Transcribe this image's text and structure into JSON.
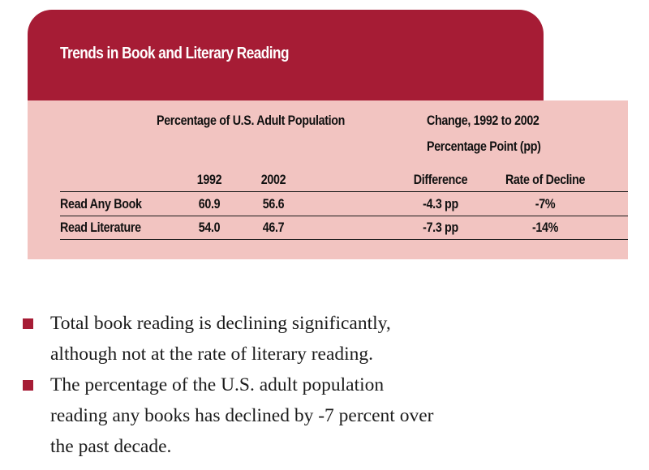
{
  "chart_data": {
    "type": "table",
    "title": "Trends in Book and Literary Reading",
    "group_headers": {
      "percentage": "Percentage of U.S. Adult Population",
      "change_line1": "Change, 1992 to 2002",
      "change_line2": "Percentage Point  (pp)"
    },
    "columns": [
      "1992",
      "2002",
      "Difference",
      "Rate of Decline"
    ],
    "rows": [
      {
        "label": "Read Any Book",
        "values": [
          "60.9",
          "56.6",
          "-4.3 pp",
          "-7%"
        ]
      },
      {
        "label": "Read Literature",
        "values": [
          "54.0",
          "46.7",
          "-7.3 pp",
          "-14%"
        ]
      }
    ]
  },
  "colors": {
    "accent": "#a61c35",
    "table_background": "#f2c4c1"
  },
  "bullets": [
    {
      "lines": [
        "Total book reading is declining significantly,",
        "although not at the rate of literary reading."
      ]
    },
    {
      "lines": [
        "The percentage of the U.S. adult population",
        "reading any books has declined by -7 percent over",
        "the past decade."
      ]
    }
  ]
}
